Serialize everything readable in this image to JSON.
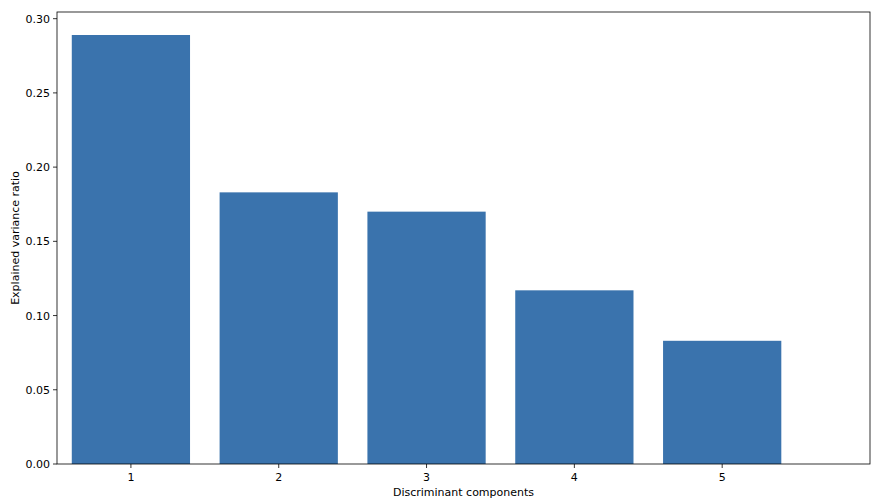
{
  "chart_data": {
    "type": "bar",
    "x_label": "Discriminant components",
    "y_label": "Explained variance ratio",
    "x": [
      1,
      2,
      3,
      4,
      5
    ],
    "values": [
      0.289,
      0.183,
      0.17,
      0.117,
      0.083
    ],
    "color": "#3a73ad",
    "xlim": [
      0.5,
      6.0
    ],
    "xticks": [
      1,
      2,
      3,
      4,
      5
    ],
    "ylim": [
      0,
      0.3045
    ],
    "yticks": [
      {
        "value": 0,
        "label": "0.00"
      },
      0.05,
      {
        "value": 0.1,
        "label": "0.10"
      },
      0.15,
      {
        "value": 0.2,
        "label": "0.20"
      },
      0.25,
      {
        "value": 0.3,
        "label": "0.30"
      }
    ],
    "grid": false
  }
}
